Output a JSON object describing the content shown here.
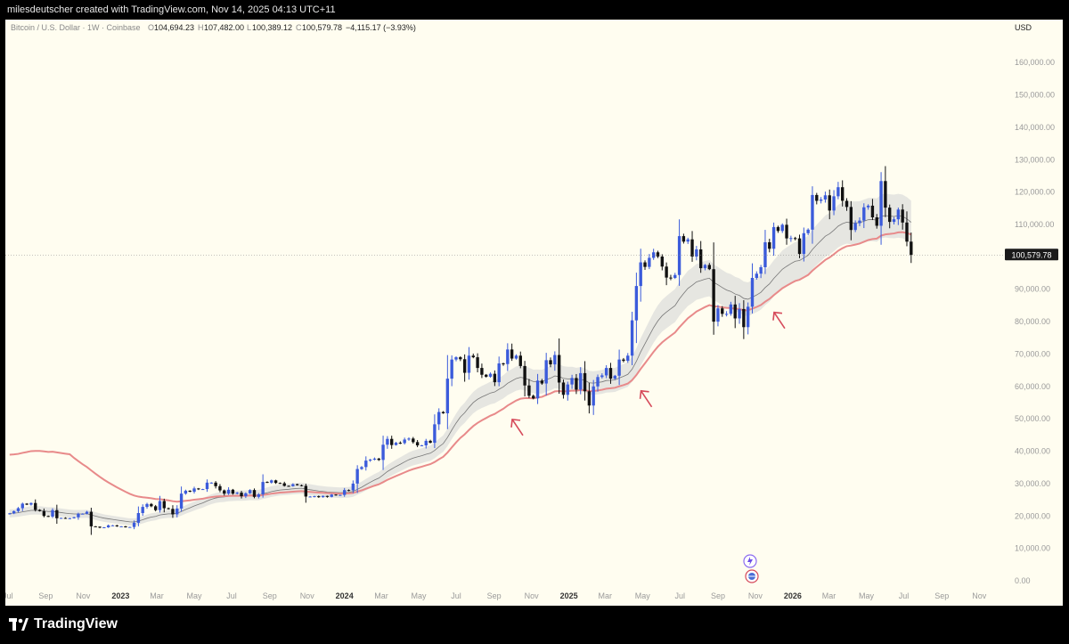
{
  "header": {
    "credit": "milesdeutscher created with TradingView.com, Nov 14, 2025 04:13 UTC+11"
  },
  "legend": {
    "symbol": "Bitcoin / U.S. Dollar · 1W · Coinbase",
    "open_label": "O",
    "open": "104,694.23",
    "high_label": "H",
    "high": "107,482.00",
    "low_label": "L",
    "low": "100,389.12",
    "close_label": "C",
    "close": "100,579.78",
    "change": "−4,115.17 (−3.93%)"
  },
  "price_axis": {
    "currency": "USD",
    "last_price_label": "100,579.78"
  },
  "footer": {
    "brand": "TradingView"
  },
  "colors": {
    "background": "#fffdf0",
    "up": "#3b5bdb",
    "down": "#111111",
    "band_fill": "#e3e3df",
    "mid_line": "#777777",
    "ema_line": "#e88a8a",
    "arrow": "#d64a5a"
  },
  "chart_data": {
    "type": "candlestick",
    "title": "Bitcoin / U.S. Dollar · 1W · Coinbase",
    "ylim": [
      0,
      165000
    ],
    "xlim": [
      "2022-06-27",
      "2026-12-07"
    ],
    "y_ticks": [
      {
        "value": 0,
        "label": "0.00"
      },
      {
        "value": 10000,
        "label": "10,000.00"
      },
      {
        "value": 20000,
        "label": "20,000.00"
      },
      {
        "value": 30000,
        "label": "30,000.00"
      },
      {
        "value": 40000,
        "label": "40,000.00"
      },
      {
        "value": 50000,
        "label": "50,000.00"
      },
      {
        "value": 60000,
        "label": "60,000.00"
      },
      {
        "value": 70000,
        "label": "70,000.00"
      },
      {
        "value": 80000,
        "label": "80,000.00"
      },
      {
        "value": 90000,
        "label": "90,000.00"
      },
      {
        "value": 110000,
        "label": "110,000.00"
      },
      {
        "value": 120000,
        "label": "120,000.00"
      },
      {
        "value": 130000,
        "label": "130,000.00"
      },
      {
        "value": 140000,
        "label": "140,000.00"
      },
      {
        "value": 150000,
        "label": "150,000.00"
      },
      {
        "value": 160000,
        "label": "160,000.00"
      }
    ],
    "x_ticks": [
      {
        "date": "2022-07-01",
        "label": "Jul",
        "bold": false
      },
      {
        "date": "2022-09-01",
        "label": "Sep",
        "bold": false
      },
      {
        "date": "2022-11-01",
        "label": "Nov",
        "bold": false
      },
      {
        "date": "2023-01-01",
        "label": "2023",
        "bold": true
      },
      {
        "date": "2023-03-01",
        "label": "Mar",
        "bold": false
      },
      {
        "date": "2023-05-01",
        "label": "May",
        "bold": false
      },
      {
        "date": "2023-07-01",
        "label": "Jul",
        "bold": false
      },
      {
        "date": "2023-09-01",
        "label": "Sep",
        "bold": false
      },
      {
        "date": "2023-11-01",
        "label": "Nov",
        "bold": false
      },
      {
        "date": "2024-01-01",
        "label": "2024",
        "bold": true
      },
      {
        "date": "2024-03-01",
        "label": "Mar",
        "bold": false
      },
      {
        "date": "2024-05-01",
        "label": "May",
        "bold": false
      },
      {
        "date": "2024-07-01",
        "label": "Jul",
        "bold": false
      },
      {
        "date": "2024-09-01",
        "label": "Sep",
        "bold": false
      },
      {
        "date": "2024-11-01",
        "label": "Nov",
        "bold": false
      },
      {
        "date": "2025-01-01",
        "label": "2025",
        "bold": true
      },
      {
        "date": "2025-03-01",
        "label": "Mar",
        "bold": false
      },
      {
        "date": "2025-05-01",
        "label": "May",
        "bold": false
      },
      {
        "date": "2025-07-01",
        "label": "Jul",
        "bold": false
      },
      {
        "date": "2025-09-01",
        "label": "Sep",
        "bold": false
      },
      {
        "date": "2025-11-01",
        "label": "Nov",
        "bold": false
      },
      {
        "date": "2026-01-01",
        "label": "2026",
        "bold": true
      },
      {
        "date": "2026-03-01",
        "label": "Mar",
        "bold": false
      },
      {
        "date": "2026-05-01",
        "label": "May",
        "bold": false
      },
      {
        "date": "2026-07-01",
        "label": "Jul",
        "bold": false
      },
      {
        "date": "2026-09-01",
        "label": "Sep",
        "bold": false
      },
      {
        "date": "2026-11-01",
        "label": "Nov",
        "bold": false
      }
    ],
    "closes_start_date": "2022-07-04",
    "weekly_closes": [
      20800,
      21500,
      22400,
      23800,
      23500,
      24000,
      21900,
      21500,
      20000,
      19800,
      21800,
      19300,
      19400,
      19200,
      19300,
      19600,
      20700,
      20700,
      21300,
      16800,
      16700,
      16400,
      16500,
      17100,
      17100,
      16800,
      16800,
      16500,
      16600,
      17900,
      20900,
      22800,
      23700,
      23000,
      21800,
      24600,
      22400,
      22200,
      20500,
      22300,
      26900,
      27800,
      27500,
      28500,
      28300,
      28300,
      30300,
      30300,
      29200,
      27900,
      26900,
      28100,
      26900,
      27200,
      26100,
      27000,
      28000,
      25900,
      26700,
      30500,
      30300,
      31000,
      30200,
      30100,
      29300,
      29200,
      29800,
      29500,
      29300,
      26000,
      26000,
      26100,
      25800,
      26200,
      25900,
      26600,
      26400,
      26500,
      28000,
      27900,
      30000,
      34500,
      35100,
      37100,
      37400,
      37700,
      37300,
      42000,
      43800,
      41900,
      42600,
      42500,
      43600,
      43900,
      42800,
      41800,
      41800,
      43200,
      42600,
      48300,
      52100,
      51700,
      62400,
      68300,
      69000,
      68400,
      64200,
      69500,
      69000,
      65700,
      63600,
      63000,
      63900,
      61300,
      67100,
      66900,
      71400,
      68600,
      69500,
      66300,
      60300,
      57100,
      56300,
      61800,
      60900,
      68100,
      66800,
      69700,
      61200,
      57400,
      60600,
      62600,
      59000,
      64100,
      58500,
      54100,
      60000,
      62900,
      63400,
      65700,
      62400,
      63300,
      68300,
      67900,
      69500,
      80400,
      91000,
      98300,
      96900,
      99700,
      101400,
      100100,
      97000,
      93600,
      93500,
      94400,
      106400,
      104700,
      105400,
      100100,
      102300,
      96500,
      97500,
      96200,
      80000,
      84100,
      82400,
      82400,
      85300,
      81000,
      83900,
      78300,
      84600,
      93500,
      94800,
      96800,
      104500,
      102500,
      109200,
      108000,
      109900,
      105700,
      105800,
      105700,
      100900,
      107300,
      108400,
      119100,
      117300,
      117700,
      119000,
      114300,
      118700,
      121500,
      117300,
      115400,
      108300,
      110400,
      111200,
      115300,
      115800,
      112200,
      109600,
      123400,
      115200,
      110800,
      111600,
      114600,
      110600,
      104700,
      100580
    ],
    "series": [
      {
        "name": "",
        "type": "line",
        "role": "band-mid"
      },
      {
        "name": "",
        "type": "line",
        "role": "long-ema"
      }
    ],
    "annotations": [
      {
        "type": "arrow",
        "near": "2024-09"
      },
      {
        "type": "arrow",
        "near": "2025-04"
      },
      {
        "type": "arrow",
        "near": "2025-11"
      }
    ]
  }
}
